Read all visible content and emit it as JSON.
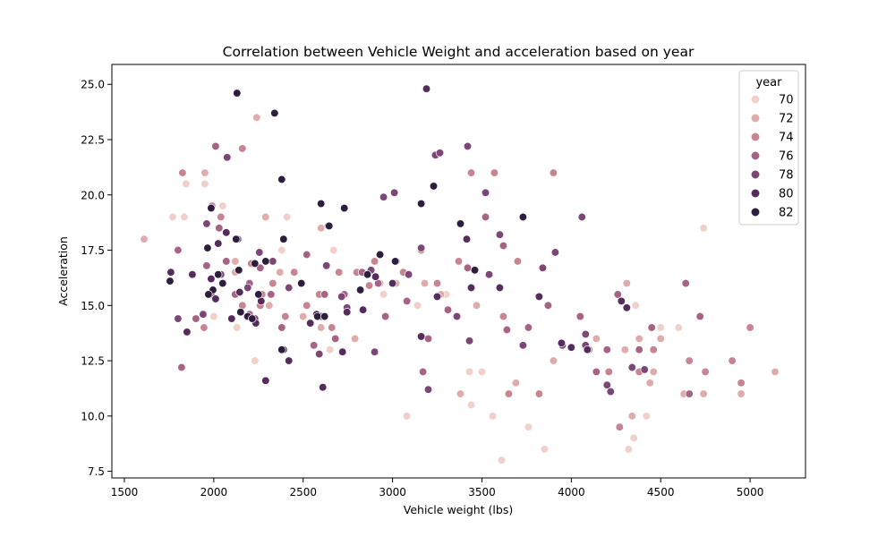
{
  "chart_data": {
    "type": "scatter",
    "title": "Correlation between Vehicle Weight and acceleration based on year",
    "xlabel": "Vehicle weight (lbs)",
    "ylabel": "Acceleration",
    "xlim": [
      1430,
      5310
    ],
    "ylim": [
      7.2,
      25.9
    ],
    "x_ticks": [
      1500,
      2000,
      2500,
      3000,
      3500,
      4000,
      4500,
      5000
    ],
    "y_ticks": [
      7.5,
      10.0,
      12.5,
      15.0,
      17.5,
      20.0,
      22.5,
      25.0
    ],
    "grid": false,
    "legend": {
      "title": "year",
      "placement": "top-right",
      "entries": [
        {
          "label": "70",
          "color": "#f0d0c8"
        },
        {
          "label": "72",
          "color": "#dfacab"
        },
        {
          "label": "74",
          "color": "#c88492"
        },
        {
          "label": "76",
          "color": "#a86384"
        },
        {
          "label": "78",
          "color": "#7c4676"
        },
        {
          "label": "80",
          "color": "#552c5c"
        },
        {
          "label": "82",
          "color": "#2d1e3e"
        }
      ]
    },
    "series": [
      {
        "name": "70",
        "color": "#f0d0c8",
        "points": [
          [
            1835,
            19.0
          ],
          [
            1845,
            20.5
          ],
          [
            1950,
            20.5
          ],
          [
            2050,
            19.5
          ],
          [
            2130,
            14.0
          ],
          [
            2380,
            17.5
          ],
          [
            2410,
            19.0
          ],
          [
            2670,
            17.5
          ],
          [
            2950,
            15.5
          ],
          [
            3080,
            10.0
          ],
          [
            3300,
            15.5
          ],
          [
            3430,
            12.0
          ],
          [
            3440,
            10.5
          ],
          [
            3500,
            12.0
          ],
          [
            3560,
            10.0
          ],
          [
            3610,
            8.0
          ],
          [
            3760,
            9.5
          ],
          [
            3850,
            8.5
          ],
          [
            4320,
            8.5
          ],
          [
            4350,
            9.0
          ],
          [
            4420,
            10.0
          ],
          [
            4500,
            14.0
          ],
          [
            4740,
            18.5
          ],
          [
            4600,
            14.0
          ],
          [
            4360,
            15.0
          ],
          [
            2230,
            12.5
          ],
          [
            3140,
            15.0
          ],
          [
            1770,
            19.0
          ],
          [
            2000,
            14.5
          ],
          [
            2650,
            13.0
          ]
        ]
      },
      {
        "name": "72",
        "color": "#dfacab",
        "points": [
          [
            1610,
            18.0
          ],
          [
            1950,
            21.0
          ],
          [
            2290,
            19.0
          ],
          [
            2240,
            23.5
          ],
          [
            2120,
            17.0
          ],
          [
            2310,
            15.0
          ],
          [
            2500,
            14.5
          ],
          [
            2600,
            14.0
          ],
          [
            2790,
            13.5
          ],
          [
            2930,
            16.0
          ],
          [
            3020,
            16.0
          ],
          [
            3270,
            15.5
          ],
          [
            3380,
            11.0
          ],
          [
            3470,
            15.0
          ],
          [
            3690,
            11.5
          ],
          [
            3900,
            12.5
          ],
          [
            4140,
            13.5
          ],
          [
            4300,
            13.0
          ],
          [
            4310,
            16.0
          ],
          [
            4340,
            10.0
          ],
          [
            4380,
            13.5
          ],
          [
            4440,
            11.5
          ],
          [
            4460,
            12.0
          ],
          [
            4500,
            13.5
          ],
          [
            4630,
            11.0
          ],
          [
            4740,
            11.0
          ],
          [
            4950,
            11.0
          ],
          [
            5140,
            12.0
          ],
          [
            2600,
            18.5
          ],
          [
            2120,
            16.5
          ],
          [
            3180,
            16.0
          ],
          [
            2370,
            16.5
          ]
        ]
      },
      {
        "name": "74",
        "color": "#c88492",
        "points": [
          [
            1825,
            21.0
          ],
          [
            1945,
            14.0
          ],
          [
            1990,
            19.5
          ],
          [
            2040,
            19.0
          ],
          [
            2160,
            22.1
          ],
          [
            2210,
            16.9
          ],
          [
            2260,
            15.0
          ],
          [
            2330,
            16.0
          ],
          [
            2400,
            14.5
          ],
          [
            2450,
            16.5
          ],
          [
            2520,
            15.0
          ],
          [
            2590,
            15.5
          ],
          [
            2700,
            16.5
          ],
          [
            2800,
            16.5
          ],
          [
            2870,
            15.9
          ],
          [
            2900,
            17.0
          ],
          [
            3060,
            16.5
          ],
          [
            3160,
            17.5
          ],
          [
            3250,
            16.0
          ],
          [
            3370,
            17.0
          ],
          [
            3440,
            21.0
          ],
          [
            3570,
            21.0
          ],
          [
            3620,
            14.5
          ],
          [
            3650,
            11.0
          ],
          [
            3700,
            17.0
          ],
          [
            3820,
            11.0
          ],
          [
            3900,
            21.0
          ],
          [
            4100,
            13.0
          ],
          [
            4210,
            12.0
          ],
          [
            4270,
            9.5
          ],
          [
            4380,
            12.0
          ],
          [
            4460,
            13.0
          ],
          [
            4660,
            12.5
          ],
          [
            4750,
            12.0
          ],
          [
            4900,
            12.5
          ],
          [
            4950,
            11.5
          ],
          [
            5000,
            14.0
          ],
          [
            2270,
            15.5
          ],
          [
            2160,
            15.0
          ],
          [
            2660,
            14.0
          ]
        ]
      },
      {
        "name": "76",
        "color": "#a86384",
        "points": [
          [
            1800,
            17.5
          ],
          [
            1820,
            12.2
          ],
          [
            1900,
            14.4
          ],
          [
            1960,
            16.8
          ],
          [
            2010,
            22.2
          ],
          [
            2030,
            18.5
          ],
          [
            2070,
            17.0
          ],
          [
            2120,
            15.5
          ],
          [
            2200,
            16.0
          ],
          [
            2260,
            16.7
          ],
          [
            2320,
            15.5
          ],
          [
            2380,
            14.0
          ],
          [
            2520,
            17.3
          ],
          [
            2560,
            13.2
          ],
          [
            2620,
            15.5
          ],
          [
            2680,
            13.5
          ],
          [
            2730,
            15.5
          ],
          [
            2830,
            16.5
          ],
          [
            2920,
            16.0
          ],
          [
            3020,
            17.0
          ],
          [
            3170,
            12.0
          ],
          [
            3200,
            13.5
          ],
          [
            3310,
            14.8
          ],
          [
            3420,
            16.7
          ],
          [
            3520,
            19.0
          ],
          [
            3640,
            13.9
          ],
          [
            3760,
            14.0
          ],
          [
            3870,
            15.0
          ],
          [
            4050,
            14.5
          ],
          [
            4140,
            12.0
          ],
          [
            4200,
            13.0
          ],
          [
            4260,
            15.5
          ],
          [
            4380,
            13.0
          ],
          [
            4450,
            14.0
          ],
          [
            4640,
            16.0
          ],
          [
            4720,
            14.5
          ],
          [
            4660,
            11.0
          ],
          [
            2200,
            14.6
          ],
          [
            3080,
            15.2
          ],
          [
            2960,
            14.5
          ],
          [
            3620,
            17.7
          ]
        ]
      },
      {
        "name": "78",
        "color": "#7c4676",
        "points": [
          [
            1800,
            14.4
          ],
          [
            1940,
            14.6
          ],
          [
            1985,
            15.5
          ],
          [
            2040,
            16.4
          ],
          [
            2075,
            21.7
          ],
          [
            2135,
            18.0
          ],
          [
            2190,
            15.8
          ],
          [
            2230,
            14.4
          ],
          [
            2255,
            17.4
          ],
          [
            2330,
            17.0
          ],
          [
            2420,
            15.8
          ],
          [
            2590,
            12.8
          ],
          [
            2630,
            16.8
          ],
          [
            2715,
            15.4
          ],
          [
            2745,
            14.9
          ],
          [
            2880,
            16.6
          ],
          [
            2950,
            19.9
          ],
          [
            3010,
            20.1
          ],
          [
            3090,
            16.4
          ],
          [
            3160,
            17.6
          ],
          [
            3200,
            11.2
          ],
          [
            3240,
            21.8
          ],
          [
            3265,
            21.9
          ],
          [
            3360,
            14.5
          ],
          [
            3420,
            22.2
          ],
          [
            3430,
            13.4
          ],
          [
            3520,
            20.1
          ],
          [
            3540,
            16.4
          ],
          [
            3600,
            18.2
          ],
          [
            3730,
            13.2
          ],
          [
            3840,
            16.7
          ],
          [
            3910,
            17.4
          ],
          [
            4060,
            19.0
          ],
          [
            4080,
            13.7
          ],
          [
            4200,
            11.4
          ],
          [
            4220,
            11.1
          ],
          [
            4340,
            12.2
          ],
          [
            4410,
            12.1
          ],
          [
            4080,
            13.2
          ],
          [
            3950,
            13.2
          ],
          [
            1960,
            18.7
          ],
          [
            2900,
            12.9
          ]
        ]
      },
      {
        "name": "80",
        "color": "#552c5c",
        "points": [
          [
            1760,
            16.5
          ],
          [
            1850,
            13.8
          ],
          [
            1880,
            16.4
          ],
          [
            1985,
            16.2
          ],
          [
            2025,
            17.8
          ],
          [
            2070,
            18.3
          ],
          [
            2100,
            14.4
          ],
          [
            2145,
            15.6
          ],
          [
            2185,
            14.5
          ],
          [
            2235,
            14.2
          ],
          [
            2265,
            15.2
          ],
          [
            2390,
            13.0
          ],
          [
            2420,
            12.5
          ],
          [
            2540,
            14.2
          ],
          [
            2575,
            14.6
          ],
          [
            2610,
            11.3
          ],
          [
            2640,
            18.6
          ],
          [
            2720,
            12.9
          ],
          [
            2745,
            14.7
          ],
          [
            2835,
            14.8
          ],
          [
            2905,
            16.3
          ],
          [
            3000,
            16.0
          ],
          [
            3160,
            13.6
          ],
          [
            3250,
            15.4
          ],
          [
            3415,
            18.0
          ],
          [
            3440,
            15.8
          ],
          [
            3600,
            15.8
          ],
          [
            3730,
            19.0
          ],
          [
            3820,
            15.4
          ],
          [
            3945,
            13.3
          ],
          [
            4000,
            13.1
          ],
          [
            4090,
            13.0
          ],
          [
            4280,
            15.2
          ],
          [
            4310,
            14.9
          ],
          [
            2290,
            11.6
          ],
          [
            2600,
            14.5
          ],
          [
            2010,
            15.3
          ],
          [
            3190,
            24.8
          ]
        ]
      },
      {
        "name": "82",
        "color": "#2d1e3e",
        "points": [
          [
            1755,
            16.1
          ],
          [
            1965,
            17.6
          ],
          [
            1985,
            19.4
          ],
          [
            1995,
            15.7
          ],
          [
            2025,
            16.4
          ],
          [
            2050,
            16.0
          ],
          [
            2125,
            18.0
          ],
          [
            2130,
            24.6
          ],
          [
            2150,
            14.7
          ],
          [
            2190,
            14.5
          ],
          [
            2215,
            14.4
          ],
          [
            2230,
            16.9
          ],
          [
            2290,
            17.0
          ],
          [
            2340,
            23.7
          ],
          [
            2380,
            13.0
          ],
          [
            2390,
            18.0
          ],
          [
            2490,
            16.0
          ],
          [
            2580,
            14.5
          ],
          [
            2600,
            19.6
          ],
          [
            2620,
            14.5
          ],
          [
            2645,
            18.6
          ],
          [
            2730,
            19.4
          ],
          [
            2820,
            15.7
          ],
          [
            2860,
            16.4
          ],
          [
            2930,
            17.3
          ],
          [
            3015,
            17.0
          ],
          [
            3160,
            19.6
          ],
          [
            3230,
            20.4
          ],
          [
            3380,
            18.7
          ],
          [
            3460,
            16.6
          ],
          [
            3730,
            19.0
          ],
          [
            2380,
            20.7
          ],
          [
            1970,
            15.5
          ],
          [
            2250,
            15.5
          ],
          [
            2140,
            16.6
          ]
        ]
      }
    ]
  }
}
